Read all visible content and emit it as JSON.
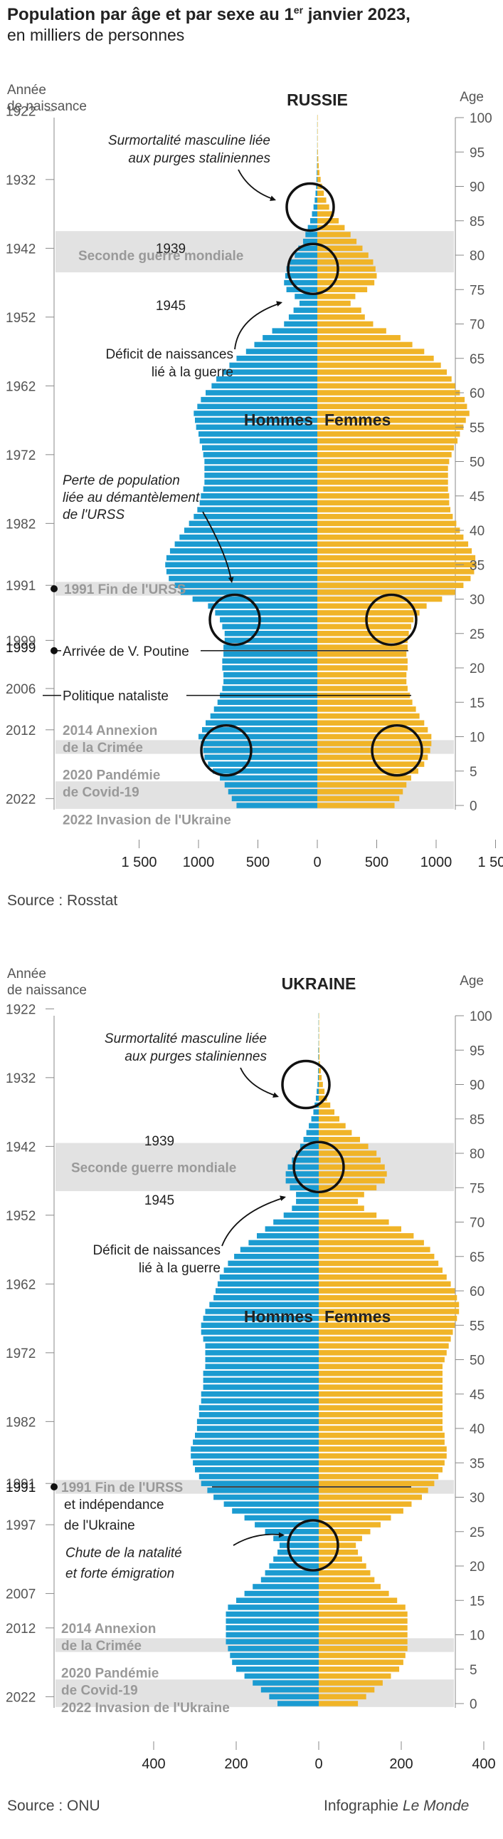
{
  "header": {
    "title": "Population par âge et par sexe au 1er janvier 2023,",
    "subtitle": "en milliers de personnes"
  },
  "colors": {
    "men": "#1b9bd1",
    "women": "#f0b428",
    "band": "#e2e2e2"
  },
  "footer": {
    "credit_prefix": "Infographie",
    "credit_name": "Le Monde"
  },
  "chart_data": [
    {
      "type": "bar",
      "name": "RUSSIE",
      "orientation": "horizontal-pyramid",
      "left_axis_label": [
        "Année",
        "de naissance"
      ],
      "right_axis_label": "Age",
      "year_ticks": [
        1922,
        1932,
        1942,
        1952,
        1962,
        1972,
        1982,
        1991,
        1999,
        2006,
        2012,
        2022
      ],
      "age_ticks": [
        100,
        95,
        90,
        85,
        80,
        75,
        70,
        65,
        60,
        55,
        50,
        45,
        40,
        35,
        30,
        25,
        20,
        15,
        10,
        5,
        0
      ],
      "x_ticks": [
        "1 500",
        "1000",
        "500",
        "0",
        "500",
        "1000",
        "1 500"
      ],
      "x_tick_values": [
        -1500,
        -1000,
        -500,
        0,
        500,
        1000,
        1500
      ],
      "xlim": [
        -1500,
        1500
      ],
      "ages": [
        0,
        1,
        2,
        3,
        4,
        5,
        6,
        7,
        8,
        9,
        10,
        11,
        12,
        13,
        14,
        15,
        16,
        17,
        18,
        19,
        20,
        21,
        22,
        23,
        24,
        25,
        26,
        27,
        28,
        29,
        30,
        31,
        32,
        33,
        34,
        35,
        36,
        37,
        38,
        39,
        40,
        41,
        42,
        43,
        44,
        45,
        46,
        47,
        48,
        49,
        50,
        51,
        52,
        53,
        54,
        55,
        56,
        57,
        58,
        59,
        60,
        61,
        62,
        63,
        64,
        65,
        66,
        67,
        68,
        69,
        70,
        71,
        72,
        73,
        74,
        75,
        76,
        77,
        78,
        79,
        80,
        81,
        82,
        83,
        84,
        85,
        86,
        87,
        88,
        89,
        90,
        91,
        92,
        93,
        94,
        95,
        96,
        97,
        98,
        99,
        100
      ],
      "series": [
        {
          "name": "Hommes",
          "values": [
            680,
            720,
            750,
            780,
            820,
            880,
            920,
            950,
            960,
            980,
            1000,
            970,
            940,
            900,
            870,
            840,
            820,
            800,
            790,
            790,
            800,
            800,
            790,
            790,
            780,
            780,
            800,
            820,
            860,
            920,
            1050,
            1150,
            1200,
            1250,
            1270,
            1280,
            1270,
            1240,
            1200,
            1160,
            1120,
            1080,
            1040,
            1010,
            990,
            980,
            960,
            950,
            950,
            950,
            950,
            960,
            970,
            990,
            1000,
            1020,
            1030,
            1040,
            1010,
            980,
            940,
            890,
            850,
            800,
            740,
            680,
            600,
            530,
            460,
            380,
            280,
            240,
            200,
            150,
            190,
            260,
            280,
            270,
            260,
            230,
            190,
            160,
            120,
            100,
            80,
            60,
            45,
            32,
            22,
            15,
            10,
            7,
            5,
            3,
            2,
            1.5,
            1,
            1,
            1,
            1,
            0.5
          ]
        },
        {
          "name": "Femmes",
          "values": [
            650,
            690,
            720,
            750,
            790,
            850,
            900,
            930,
            950,
            960,
            960,
            930,
            900,
            860,
            830,
            800,
            780,
            760,
            750,
            750,
            760,
            760,
            750,
            760,
            760,
            770,
            790,
            810,
            860,
            920,
            1050,
            1160,
            1230,
            1290,
            1320,
            1340,
            1330,
            1300,
            1270,
            1230,
            1200,
            1170,
            1140,
            1120,
            1110,
            1110,
            1100,
            1100,
            1100,
            1100,
            1110,
            1130,
            1150,
            1180,
            1200,
            1230,
            1250,
            1280,
            1260,
            1240,
            1200,
            1160,
            1130,
            1090,
            1040,
            980,
            900,
            800,
            700,
            580,
            470,
            400,
            370,
            280,
            320,
            420,
            480,
            500,
            490,
            470,
            430,
            380,
            330,
            280,
            230,
            180,
            140,
            100,
            75,
            55,
            40,
            28,
            18,
            12,
            8,
            5,
            3,
            2,
            2,
            1,
            1
          ]
        }
      ],
      "bands": [
        {
          "label": "Seconde guerre mondiale",
          "age_from": 78,
          "age_to": 83
        },
        {
          "label": "1991 Fin de l'URSS",
          "age_from": 31,
          "age_to": 32
        },
        {
          "label": "2014 Annexion de la Crimée",
          "age_from": 8,
          "age_to": 9
        },
        {
          "label": "2020 Pandémie de Covid-19",
          "age_from": 2,
          "age_to": 3
        },
        {
          "label": "2022 Invasion de l'Ukraine",
          "age_from": 0,
          "age_to": 1
        }
      ],
      "annotations": {
        "purges": [
          "Surmortalité masculine liée",
          "aux purges staliniennes"
        ],
        "year_1939": "1939",
        "year_1945": "1945",
        "deficit": [
          "Déficit de naissances",
          "lié à la guerre"
        ],
        "perte": [
          "Perte de population",
          "liée au démantèlement",
          "de l'URSS"
        ],
        "poutine": "Arrivée de V. Poutine",
        "nataliste": "Politique nataliste",
        "urss_label": "1991 Fin de l'URSS",
        "crimee": [
          "2014 Annexion",
          "de la Crimée"
        ],
        "covid": [
          "2020 Pandémie",
          "de Covid-19"
        ],
        "invasion": "2022 Invasion de l'Ukraine",
        "hommes": "Hommes",
        "femmes": "Femmes"
      },
      "source": "Source : Rosstat"
    },
    {
      "type": "bar",
      "name": "UKRAINE",
      "orientation": "horizontal-pyramid",
      "left_axis_label": [
        "Année",
        "de naissance"
      ],
      "right_axis_label": "Age",
      "year_ticks": [
        1922,
        1932,
        1942,
        1952,
        1962,
        1972,
        1982,
        1991,
        1997,
        2007,
        2012,
        2022
      ],
      "age_ticks": [
        100,
        95,
        90,
        85,
        80,
        75,
        70,
        65,
        60,
        55,
        50,
        45,
        40,
        35,
        30,
        25,
        20,
        15,
        10,
        5,
        0
      ],
      "x_ticks": [
        "400",
        "200",
        "0",
        "200",
        "400"
      ],
      "x_tick_values": [
        -400,
        -200,
        0,
        200,
        400
      ],
      "xlim": [
        -400,
        400
      ],
      "ages": [
        0,
        1,
        2,
        3,
        4,
        5,
        6,
        7,
        8,
        9,
        10,
        11,
        12,
        13,
        14,
        15,
        16,
        17,
        18,
        19,
        20,
        21,
        22,
        23,
        24,
        25,
        26,
        27,
        28,
        29,
        30,
        31,
        32,
        33,
        34,
        35,
        36,
        37,
        38,
        39,
        40,
        41,
        42,
        43,
        44,
        45,
        46,
        47,
        48,
        49,
        50,
        51,
        52,
        53,
        54,
        55,
        56,
        57,
        58,
        59,
        60,
        61,
        62,
        63,
        64,
        65,
        66,
        67,
        68,
        69,
        70,
        71,
        72,
        73,
        74,
        75,
        76,
        77,
        78,
        79,
        80,
        81,
        82,
        83,
        84,
        85,
        86,
        87,
        88,
        89,
        90,
        91,
        92,
        93,
        94,
        95,
        96,
        97,
        98,
        99,
        100
      ],
      "series": [
        {
          "name": "Hommes",
          "values": [
            100,
            120,
            140,
            160,
            180,
            200,
            210,
            215,
            220,
            225,
            225,
            225,
            225,
            225,
            220,
            200,
            180,
            160,
            140,
            130,
            120,
            110,
            100,
            95,
            110,
            130,
            155,
            180,
            210,
            230,
            255,
            270,
            285,
            290,
            300,
            305,
            310,
            310,
            305,
            300,
            295,
            295,
            290,
            290,
            285,
            285,
            280,
            280,
            280,
            275,
            275,
            275,
            275,
            280,
            285,
            285,
            280,
            275,
            265,
            255,
            250,
            245,
            240,
            230,
            220,
            205,
            190,
            170,
            150,
            130,
            110,
            85,
            65,
            55,
            55,
            70,
            80,
            80,
            75,
            65,
            55,
            45,
            37,
            30,
            24,
            18,
            13,
            10,
            7,
            5,
            3,
            2,
            1.5,
            1,
            1,
            1,
            0.5,
            0.5,
            0.5,
            0.5,
            0.5
          ]
        },
        {
          "name": "Femmes",
          "values": [
            95,
            115,
            135,
            155,
            175,
            195,
            205,
            210,
            215,
            215,
            215,
            215,
            215,
            215,
            210,
            190,
            170,
            150,
            135,
            125,
            115,
            105,
            95,
            90,
            105,
            125,
            150,
            175,
            205,
            225,
            250,
            265,
            280,
            290,
            300,
            305,
            310,
            310,
            305,
            305,
            300,
            300,
            300,
            300,
            300,
            300,
            300,
            300,
            300,
            300,
            305,
            310,
            315,
            320,
            325,
            330,
            335,
            340,
            340,
            335,
            330,
            320,
            310,
            300,
            290,
            280,
            270,
            255,
            230,
            200,
            170,
            140,
            110,
            95,
            110,
            140,
            160,
            165,
            160,
            150,
            140,
            120,
            100,
            80,
            65,
            50,
            38,
            28,
            20,
            14,
            10,
            7,
            5,
            3,
            2,
            1.5,
            1,
            1,
            1,
            0.5,
            0.5
          ]
        }
      ],
      "bands": [
        {
          "label": "Seconde guerre mondiale",
          "age_from": 75,
          "age_to": 81
        },
        {
          "label": "1991 Fin de l'URSS",
          "age_from": 31,
          "age_to": 32
        },
        {
          "label": "2014 Annexion de la Crimée",
          "age_from": 8,
          "age_to": 9
        },
        {
          "label": "2020 Pandémie de Covid-19",
          "age_from": 2,
          "age_to": 3
        },
        {
          "label": "2022 Invasion de l'Ukraine",
          "age_from": 0,
          "age_to": 1
        }
      ],
      "annotations": {
        "purges": [
          "Surmortalité masculine liée",
          "aux purges staliniennes"
        ],
        "year_1939": "1939",
        "year_1945": "1945",
        "deficit": [
          "Déficit de naissances",
          "lié à la guerre"
        ],
        "urss_label": "1991 Fin de l'URSS",
        "independance": [
          "et indépendance",
          "de l'Ukraine"
        ],
        "chute": [
          "Chute de la natalité",
          "et forte émigration"
        ],
        "crimee": [
          "2014 Annexion",
          "de la Crimée"
        ],
        "covid": [
          "2020 Pandémie",
          "de Covid-19"
        ],
        "invasion": "2022 Invasion de l'Ukraine",
        "hommes": "Hommes",
        "femmes": "Femmes"
      },
      "source": "Source : ONU"
    }
  ]
}
